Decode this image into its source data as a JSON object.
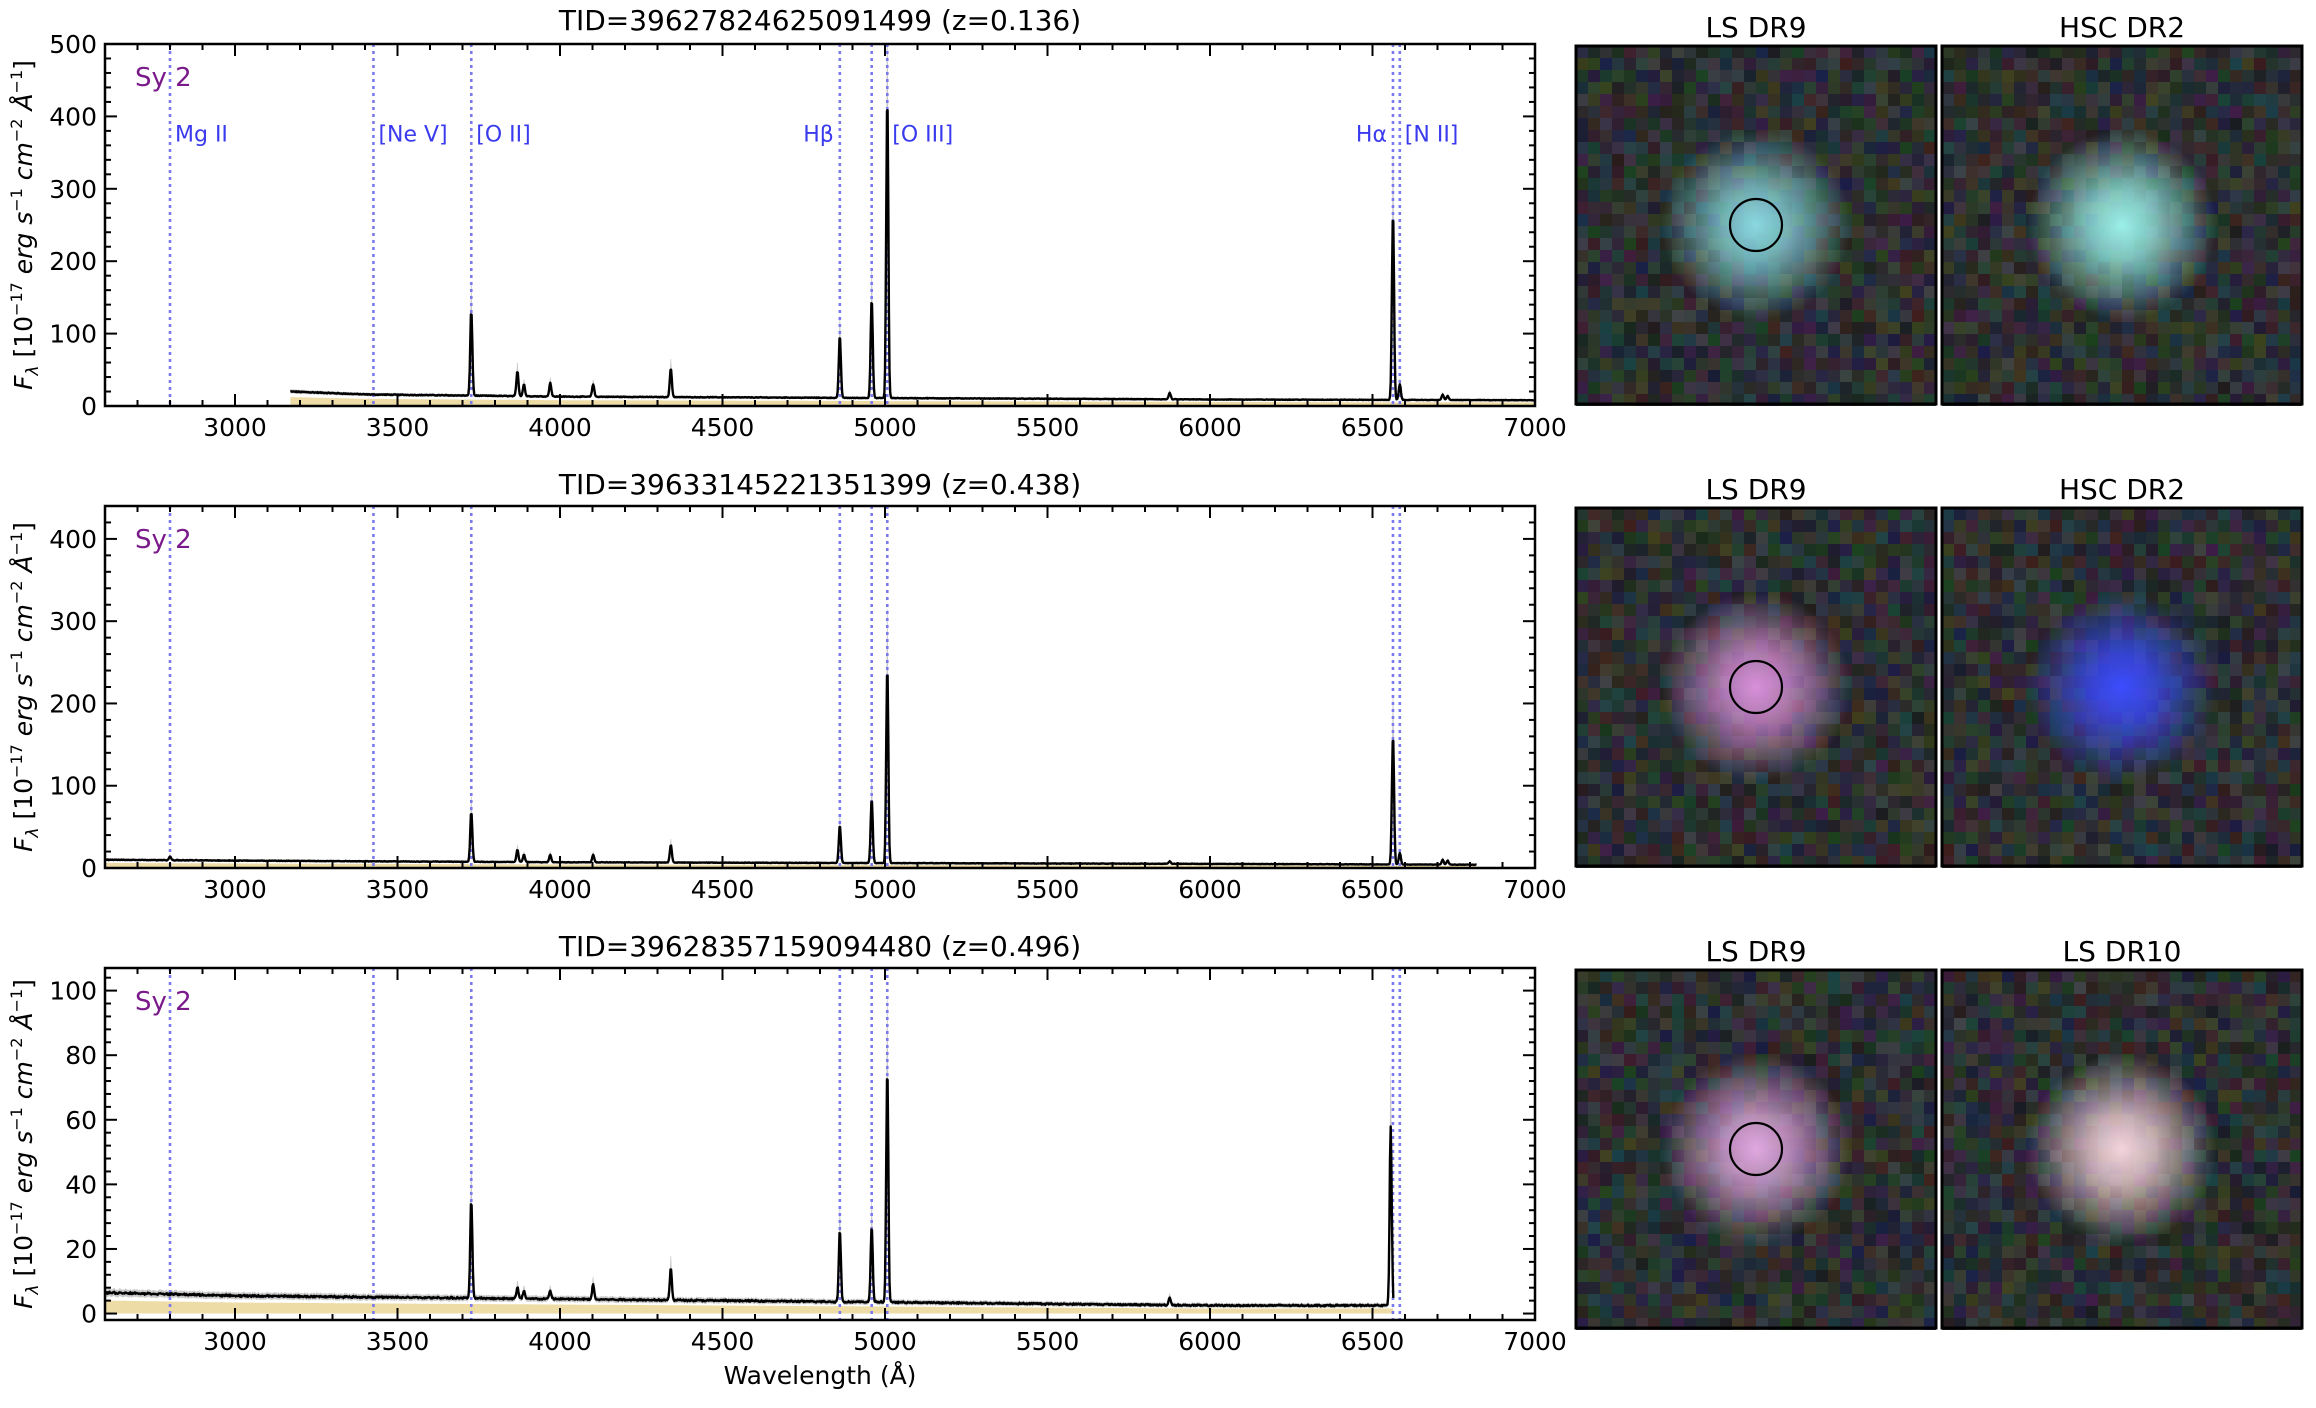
{
  "chart_data": [
    {
      "type": "line",
      "title": "TID=39627824625091499 (z=0.136)",
      "class_label": "Sy 2",
      "redshift": 0.136,
      "xlabel": "",
      "ylabel": "F_λ [10^-17 erg s^-1 cm^-2 Å^-1]",
      "xlim": [
        2600,
        7000
      ],
      "ylim": [
        0,
        500
      ],
      "x_ticks": [
        3000,
        3500,
        4000,
        4500,
        5000,
        5500,
        6000,
        6500,
        7000
      ],
      "y_ticks": [
        0,
        100,
        200,
        300,
        400,
        500
      ],
      "wavelength_coverage": [
        3170,
        7000
      ],
      "continuum": [
        [
          3170,
          20
        ],
        [
          3400,
          16
        ],
        [
          4000,
          13
        ],
        [
          5000,
          11
        ],
        [
          6000,
          9
        ],
        [
          7000,
          8
        ]
      ],
      "emission_lines": [
        {
          "wavelength": 3727,
          "peak": 132
        },
        {
          "wavelength": 3869,
          "peak": 48
        },
        {
          "wavelength": 3889,
          "peak": 30
        },
        {
          "wavelength": 3970,
          "peak": 32
        },
        {
          "wavelength": 4102,
          "peak": 30
        },
        {
          "wavelength": 4341,
          "peak": 52
        },
        {
          "wavelength": 4861,
          "peak": 97
        },
        {
          "wavelength": 4959,
          "peak": 148
        },
        {
          "wavelength": 5007,
          "peak": 428
        },
        {
          "wavelength": 5876,
          "peak": 18
        },
        {
          "wavelength": 6563,
          "peak": 268
        },
        {
          "wavelength": 6584,
          "peak": 30
        },
        {
          "wavelength": 6716,
          "peak": 16
        },
        {
          "wavelength": 6731,
          "peak": 14
        }
      ],
      "line_markers": [
        {
          "name": "Mg II",
          "wavelength": 2800
        },
        {
          "name": "[Ne V]",
          "wavelength": 3426
        },
        {
          "name": "[O II]",
          "wavelength": 3727
        },
        {
          "name": "Hβ",
          "wavelength": 4861
        },
        {
          "name": "",
          "wavelength": 4959
        },
        {
          "name": "[O III]",
          "wavelength": 5007
        },
        {
          "name": "Hα",
          "wavelength": 6563
        },
        {
          "name": "[N II]",
          "wavelength": 6584
        }
      ],
      "cutouts": [
        {
          "label": "LS DR9",
          "circle": true,
          "color": "#8ad8e0"
        },
        {
          "label": "HSC DR2",
          "circle": false,
          "color": "#9af0e8"
        }
      ]
    },
    {
      "type": "line",
      "title": "TID=39633145221351399 (z=0.438)",
      "class_label": "Sy 2",
      "redshift": 0.438,
      "xlabel": "",
      "ylabel": "F_λ [10^-17 erg s^-1 cm^-2 Å^-1]",
      "xlim": [
        2600,
        7000
      ],
      "ylim": [
        0,
        440
      ],
      "x_ticks": [
        3000,
        3500,
        4000,
        4500,
        5000,
        5500,
        6000,
        6500,
        7000
      ],
      "y_ticks": [
        0,
        100,
        200,
        300,
        400
      ],
      "wavelength_coverage": [
        2600,
        6820
      ],
      "continuum": [
        [
          2600,
          10
        ],
        [
          3000,
          9
        ],
        [
          4000,
          7
        ],
        [
          5000,
          6
        ],
        [
          6000,
          5
        ],
        [
          6820,
          4
        ]
      ],
      "emission_lines": [
        {
          "wavelength": 2800,
          "peak": 14
        },
        {
          "wavelength": 3727,
          "peak": 68
        },
        {
          "wavelength": 3869,
          "peak": 22
        },
        {
          "wavelength": 3889,
          "peak": 16
        },
        {
          "wavelength": 3970,
          "peak": 16
        },
        {
          "wavelength": 4102,
          "peak": 16
        },
        {
          "wavelength": 4341,
          "peak": 28
        },
        {
          "wavelength": 4861,
          "peak": 52
        },
        {
          "wavelength": 4959,
          "peak": 84
        },
        {
          "wavelength": 5007,
          "peak": 245
        },
        {
          "wavelength": 5876,
          "peak": 8
        },
        {
          "wavelength": 6563,
          "peak": 162
        },
        {
          "wavelength": 6584,
          "peak": 18
        },
        {
          "wavelength": 6716,
          "peak": 10
        },
        {
          "wavelength": 6731,
          "peak": 9
        }
      ],
      "line_markers": [
        {
          "name": "",
          "wavelength": 2800
        },
        {
          "name": "",
          "wavelength": 3426
        },
        {
          "name": "",
          "wavelength": 3727
        },
        {
          "name": "",
          "wavelength": 4861
        },
        {
          "name": "",
          "wavelength": 4959
        },
        {
          "name": "",
          "wavelength": 5007
        },
        {
          "name": "",
          "wavelength": 6563
        },
        {
          "name": "",
          "wavelength": 6584
        }
      ],
      "cutouts": [
        {
          "label": "LS DR9",
          "circle": true,
          "color": "#d890d8"
        },
        {
          "label": "HSC DR2",
          "circle": false,
          "color": "#3c4cff"
        }
      ]
    },
    {
      "type": "line",
      "title": "TID=39628357159094480 (z=0.496)",
      "class_label": "Sy 2",
      "redshift": 0.496,
      "xlabel": "Wavelength (Å)",
      "ylabel": "F_λ [10^-17 erg s^-1 cm^-2 Å^-1]",
      "xlim": [
        2600,
        7000
      ],
      "ylim": [
        -2,
        107
      ],
      "x_ticks": [
        3000,
        3500,
        4000,
        4500,
        5000,
        5500,
        6000,
        6500,
        7000
      ],
      "y_ticks": [
        0,
        20,
        40,
        60,
        80,
        100
      ],
      "wavelength_coverage": [
        2600,
        6565
      ],
      "continuum": [
        [
          2600,
          6.5
        ],
        [
          3000,
          5.5
        ],
        [
          4000,
          4.5
        ],
        [
          5000,
          3.5
        ],
        [
          6000,
          2.5
        ],
        [
          6500,
          2.5
        ]
      ],
      "emission_lines": [
        {
          "wavelength": 3727,
          "peak": 35
        },
        {
          "wavelength": 3869,
          "peak": 8
        },
        {
          "wavelength": 3889,
          "peak": 7
        },
        {
          "wavelength": 3970,
          "peak": 7
        },
        {
          "wavelength": 4102,
          "peak": 9
        },
        {
          "wavelength": 4341,
          "peak": 14
        },
        {
          "wavelength": 4861,
          "peak": 26
        },
        {
          "wavelength": 4959,
          "peak": 27
        },
        {
          "wavelength": 5007,
          "peak": 76
        },
        {
          "wavelength": 5876,
          "peak": 5
        },
        {
          "wavelength": 6556,
          "peak": 58
        }
      ],
      "line_markers": [
        {
          "name": "",
          "wavelength": 2800
        },
        {
          "name": "",
          "wavelength": 3426
        },
        {
          "name": "",
          "wavelength": 3727
        },
        {
          "name": "",
          "wavelength": 4861
        },
        {
          "name": "",
          "wavelength": 4959
        },
        {
          "name": "",
          "wavelength": 5007
        },
        {
          "name": "",
          "wavelength": 6563
        },
        {
          "name": "",
          "wavelength": 6584
        }
      ],
      "cutouts": [
        {
          "label": "LS DR9",
          "circle": true,
          "color": "#e0a8e0"
        },
        {
          "label": "LS DR10",
          "circle": false,
          "color": "#f4d4dc"
        }
      ]
    }
  ],
  "colors": {
    "spectrum": "#000000",
    "error_band": "#b0b0b0",
    "model_band": "#e8d08a",
    "marker": "#7a7aee",
    "marker_label": "#3a3aee",
    "class_label": "#7a1a8a"
  }
}
